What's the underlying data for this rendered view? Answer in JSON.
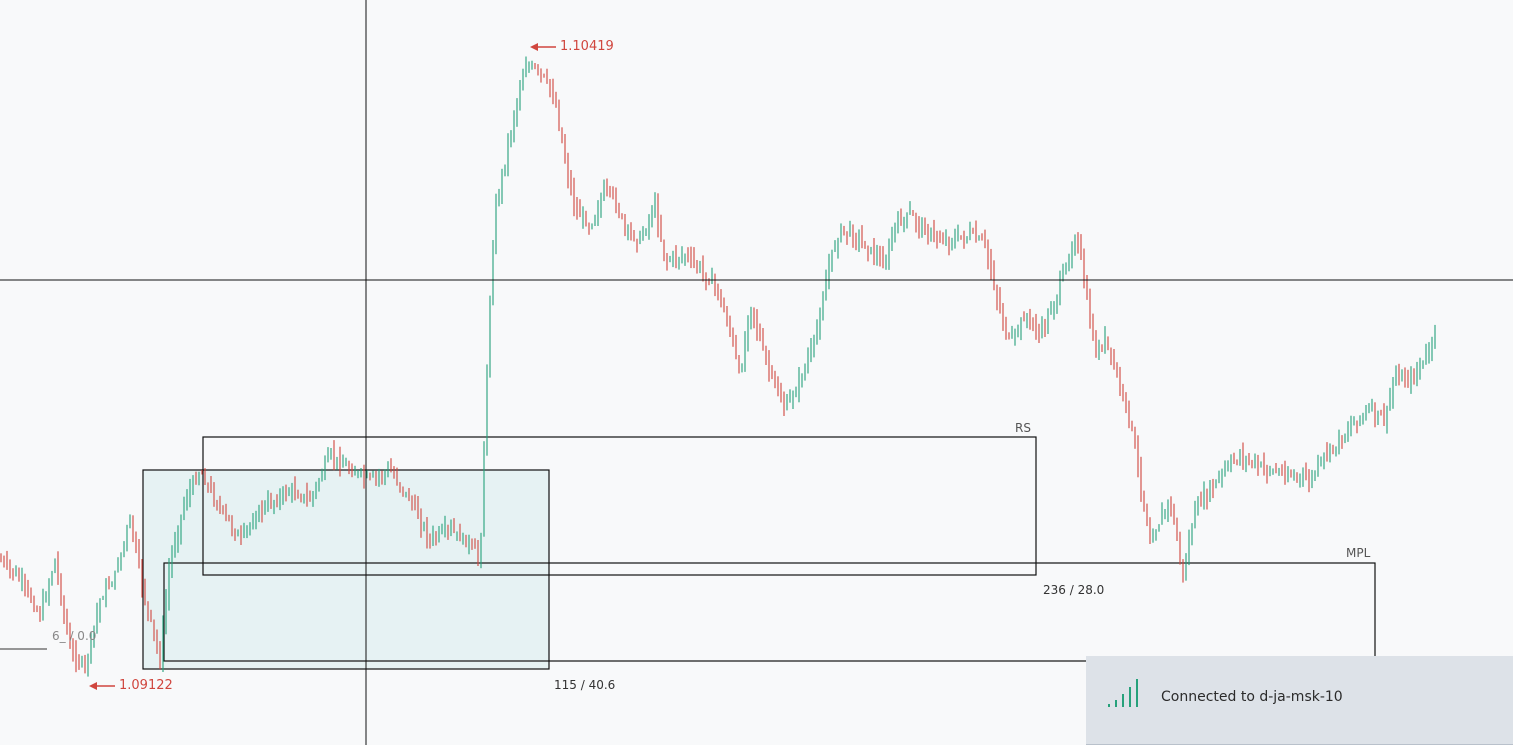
{
  "chart": {
    "price_markers": {
      "high": "1.10419",
      "low": "1.09122"
    },
    "boxes": {
      "rs": {
        "label": "RS",
        "stat": "236 / 28.0"
      },
      "mpl": {
        "label": "MPL"
      },
      "shaded": {
        "stat": "115 / 40.6"
      },
      "left_partial": {
        "stat": "6_ / 0.0"
      }
    },
    "colors": {
      "up": "#26a17b",
      "down": "#d0463e",
      "box_fill": "#e4f0f2",
      "crosshair": "#111111"
    }
  },
  "notification": {
    "icon": "signal-strength-icon",
    "message": "Connected to d-ja-msk-10"
  }
}
